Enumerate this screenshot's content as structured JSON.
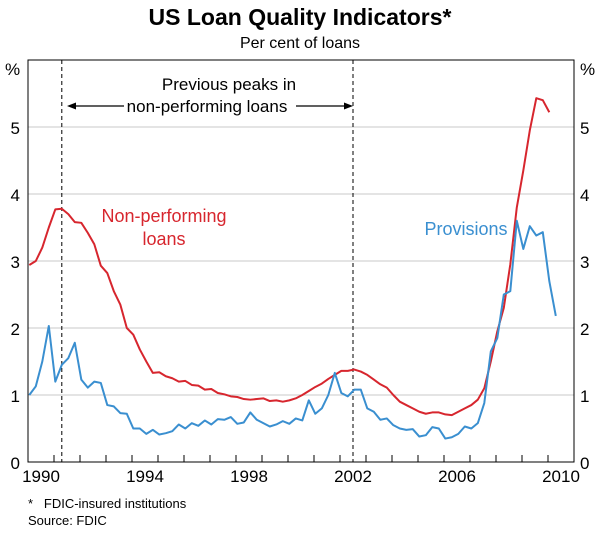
{
  "chart_data": {
    "type": "line",
    "title": "US Loan Quality Indicators*",
    "subtitle": "Per cent of loans",
    "ylabel_left": "%",
    "ylabel_right": "%",
    "ylim": [
      0,
      6
    ],
    "yticks": [
      0,
      1,
      2,
      3,
      4,
      5
    ],
    "xlim": [
      1990,
      2011
    ],
    "xtick_labels": [
      "1990",
      "1994",
      "1998",
      "2002",
      "2006",
      "2010"
    ],
    "grid": true,
    "x_start": 1990.0,
    "x_step": 0.25,
    "series": [
      {
        "name": "Non-performing loans",
        "color": "#d7262e",
        "values": [
          2.94,
          3.0,
          3.2,
          3.5,
          3.77,
          3.78,
          3.7,
          3.58,
          3.57,
          3.42,
          3.25,
          2.93,
          2.82,
          2.55,
          2.35,
          2.0,
          1.9,
          1.68,
          1.5,
          1.33,
          1.34,
          1.28,
          1.25,
          1.2,
          1.21,
          1.15,
          1.14,
          1.08,
          1.09,
          1.03,
          1.01,
          0.98,
          0.97,
          0.94,
          0.93,
          0.94,
          0.95,
          0.91,
          0.92,
          0.9,
          0.92,
          0.95,
          1.0,
          1.06,
          1.12,
          1.17,
          1.24,
          1.3,
          1.36,
          1.36,
          1.38,
          1.35,
          1.3,
          1.23,
          1.16,
          1.11,
          1.0,
          0.9,
          0.85,
          0.8,
          0.75,
          0.72,
          0.74,
          0.74,
          0.71,
          0.7,
          0.75,
          0.8,
          0.85,
          0.93,
          1.1,
          1.5,
          1.95,
          2.3,
          2.95,
          3.8,
          4.35,
          4.95,
          5.43,
          5.4,
          5.22
        ]
      },
      {
        "name": "Provisions",
        "color": "#3a8fd0",
        "values": [
          1.0,
          1.13,
          1.5,
          2.03,
          1.2,
          1.45,
          1.55,
          1.78,
          1.23,
          1.11,
          1.2,
          1.18,
          0.85,
          0.83,
          0.73,
          0.72,
          0.5,
          0.5,
          0.42,
          0.48,
          0.41,
          0.43,
          0.46,
          0.56,
          0.5,
          0.58,
          0.54,
          0.62,
          0.56,
          0.64,
          0.63,
          0.67,
          0.57,
          0.59,
          0.74,
          0.63,
          0.58,
          0.53,
          0.56,
          0.61,
          0.57,
          0.65,
          0.62,
          0.92,
          0.72,
          0.8,
          1.0,
          1.33,
          1.03,
          0.98,
          1.08,
          1.08,
          0.8,
          0.75,
          0.63,
          0.65,
          0.55,
          0.5,
          0.48,
          0.49,
          0.38,
          0.4,
          0.52,
          0.5,
          0.35,
          0.37,
          0.42,
          0.53,
          0.5,
          0.58,
          0.88,
          1.65,
          1.85,
          2.5,
          2.55,
          3.6,
          3.18,
          3.52,
          3.38,
          3.43,
          2.7,
          2.18
        ]
      }
    ],
    "reference_lines": [
      1991.3,
      2002.5
    ],
    "annotation": {
      "line1": "Previous peaks in",
      "line2": "non-performing loans"
    },
    "series_labels": {
      "npl_line1": "Non-performing",
      "npl_line2": "loans",
      "provisions": "Provisions"
    },
    "footnotes": [
      "*   FDIC-insured institutions",
      "Source: FDIC"
    ]
  }
}
